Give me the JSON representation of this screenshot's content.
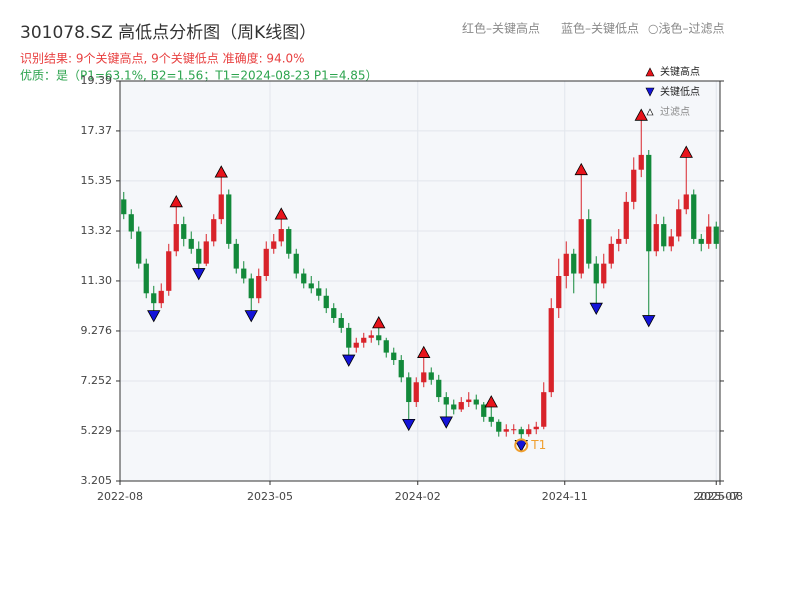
{
  "chart_data": {
    "type": "candlestick",
    "title": "301078.SZ 高低点分析图（周K线图）",
    "header_legend": [
      "红色–关键高点",
      "蓝色–关键低点",
      "○浅色–过滤点"
    ],
    "subtitle": "识别结果: 9个关键高点, 9个关键低点  准确度: 94.0%",
    "quality": "优质：是（P1=63.1%, B2=1.56；T1=2024-08-23 P1=4.85）",
    "legend": {
      "position": "upper right",
      "items": [
        "关键高点",
        "关键低点",
        "过滤点"
      ]
    },
    "up_color": "#d8232a",
    "down_color": "#12893a",
    "high_color": "#e8141b",
    "low_color": "#1414d8",
    "t1_color": "#f0a030",
    "grid": true,
    "ylim": [
      3.205,
      19.39
    ],
    "yticks": [
      3.205,
      5.229,
      7.252,
      9.276,
      {
        "value": 11.3,
        "label": "11.30"
      },
      13.32,
      15.35,
      17.37,
      19.39
    ],
    "xlim": [
      0,
      80
    ],
    "xticks": [
      {
        "value": 0,
        "label": "2022-08"
      },
      {
        "value": 20,
        "label": "2023-05"
      },
      {
        "value": 39.7,
        "label": "2024-02"
      },
      {
        "value": 59.3,
        "label": "2024-11"
      },
      {
        "value": 79.5,
        "label": "2025-07"
      },
      {
        "value": 80,
        "label": "2025-08"
      }
    ],
    "ohlc": [
      [
        14.6,
        14.9,
        13.8,
        14.0
      ],
      [
        14.0,
        14.2,
        13.0,
        13.3
      ],
      [
        13.3,
        13.5,
        11.8,
        12.0
      ],
      [
        12.0,
        12.2,
        10.6,
        10.8
      ],
      [
        10.8,
        11.1,
        10.1,
        10.4
      ],
      [
        10.4,
        11.2,
        10.2,
        10.9
      ],
      [
        10.9,
        12.8,
        10.7,
        12.5
      ],
      [
        12.5,
        14.3,
        12.3,
        13.6
      ],
      [
        13.6,
        13.9,
        12.7,
        13.0
      ],
      [
        13.0,
        13.3,
        12.4,
        12.6
      ],
      [
        12.6,
        12.9,
        11.8,
        12.0
      ],
      [
        12.0,
        13.2,
        11.9,
        12.9
      ],
      [
        12.9,
        14.0,
        12.7,
        13.8
      ],
      [
        13.8,
        15.5,
        13.6,
        14.8
      ],
      [
        14.8,
        15.0,
        12.6,
        12.8
      ],
      [
        12.8,
        13.0,
        11.6,
        11.8
      ],
      [
        11.8,
        12.1,
        11.2,
        11.4
      ],
      [
        11.4,
        11.6,
        10.1,
        10.6
      ],
      [
        10.6,
        11.8,
        10.4,
        11.5
      ],
      [
        11.5,
        12.9,
        11.3,
        12.6
      ],
      [
        12.6,
        13.2,
        12.4,
        12.9
      ],
      [
        12.9,
        13.8,
        12.7,
        13.4
      ],
      [
        13.4,
        13.5,
        12.2,
        12.4
      ],
      [
        12.4,
        12.6,
        11.4,
        11.6
      ],
      [
        11.6,
        11.8,
        11.0,
        11.2
      ],
      [
        11.2,
        11.5,
        10.8,
        11.0
      ],
      [
        11.0,
        11.3,
        10.5,
        10.7
      ],
      [
        10.7,
        11.0,
        10.0,
        10.2
      ],
      [
        10.2,
        10.4,
        9.6,
        9.8
      ],
      [
        9.8,
        10.0,
        9.2,
        9.4
      ],
      [
        9.4,
        9.6,
        8.3,
        8.6
      ],
      [
        8.6,
        9.0,
        8.4,
        8.8
      ],
      [
        8.8,
        9.2,
        8.6,
        9.0
      ],
      [
        9.0,
        9.3,
        8.8,
        9.1
      ],
      [
        9.1,
        9.4,
        8.7,
        8.9
      ],
      [
        8.9,
        9.0,
        8.2,
        8.4
      ],
      [
        8.4,
        8.6,
        7.9,
        8.1
      ],
      [
        8.1,
        8.3,
        7.2,
        7.4
      ],
      [
        7.4,
        7.6,
        5.7,
        6.4
      ],
      [
        6.4,
        7.4,
        6.2,
        7.2
      ],
      [
        7.2,
        8.2,
        7.0,
        7.6
      ],
      [
        7.6,
        7.8,
        7.1,
        7.3
      ],
      [
        7.3,
        7.5,
        6.4,
        6.6
      ],
      [
        6.6,
        6.8,
        5.8,
        6.3
      ],
      [
        6.3,
        6.5,
        5.9,
        6.1
      ],
      [
        6.1,
        6.6,
        6.0,
        6.4
      ],
      [
        6.4,
        6.8,
        6.2,
        6.5
      ],
      [
        6.5,
        6.7,
        6.1,
        6.3
      ],
      [
        6.3,
        6.4,
        5.6,
        5.8
      ],
      [
        5.8,
        6.2,
        5.4,
        5.6
      ],
      [
        5.6,
        5.7,
        5.0,
        5.2
      ],
      [
        5.2,
        5.5,
        5.0,
        5.3
      ],
      [
        5.3,
        5.5,
        5.1,
        5.3
      ],
      [
        5.3,
        5.4,
        4.85,
        5.1
      ],
      [
        5.1,
        5.5,
        5.0,
        5.3
      ],
      [
        5.3,
        5.6,
        5.1,
        5.4
      ],
      [
        5.4,
        7.2,
        5.3,
        6.8
      ],
      [
        6.8,
        10.6,
        6.6,
        10.2
      ],
      [
        10.2,
        12.2,
        9.8,
        11.5
      ],
      [
        11.5,
        12.9,
        11.0,
        12.4
      ],
      [
        12.4,
        12.6,
        10.8,
        11.6
      ],
      [
        11.6,
        15.6,
        11.4,
        13.8
      ],
      [
        13.8,
        14.2,
        11.8,
        12.0
      ],
      [
        12.0,
        12.3,
        10.4,
        11.2
      ],
      [
        11.2,
        12.4,
        11.0,
        12.0
      ],
      [
        12.0,
        13.1,
        11.8,
        12.8
      ],
      [
        12.8,
        13.4,
        12.5,
        13.0
      ],
      [
        13.0,
        14.9,
        12.8,
        14.5
      ],
      [
        14.5,
        16.3,
        14.2,
        15.8
      ],
      [
        15.8,
        17.8,
        15.5,
        16.4
      ],
      [
        16.4,
        16.6,
        9.9,
        12.5
      ],
      [
        12.5,
        14.0,
        12.3,
        13.6
      ],
      [
        13.6,
        13.9,
        12.5,
        12.7
      ],
      [
        12.7,
        13.4,
        12.5,
        13.1
      ],
      [
        13.1,
        14.6,
        12.9,
        14.2
      ],
      [
        14.2,
        16.3,
        14.0,
        14.8
      ],
      [
        14.8,
        15.0,
        12.8,
        13.0
      ],
      [
        13.0,
        13.2,
        12.5,
        12.8
      ],
      [
        12.8,
        14.0,
        12.6,
        13.5
      ],
      [
        13.5,
        13.7,
        12.6,
        12.8
      ]
    ],
    "key_highs": [
      7,
      13,
      21,
      34,
      40,
      49,
      61,
      69,
      75
    ],
    "key_lows": [
      4,
      10,
      17,
      30,
      38,
      43,
      53,
      63,
      70
    ],
    "t1": {
      "index": 53,
      "label": "T1"
    }
  }
}
